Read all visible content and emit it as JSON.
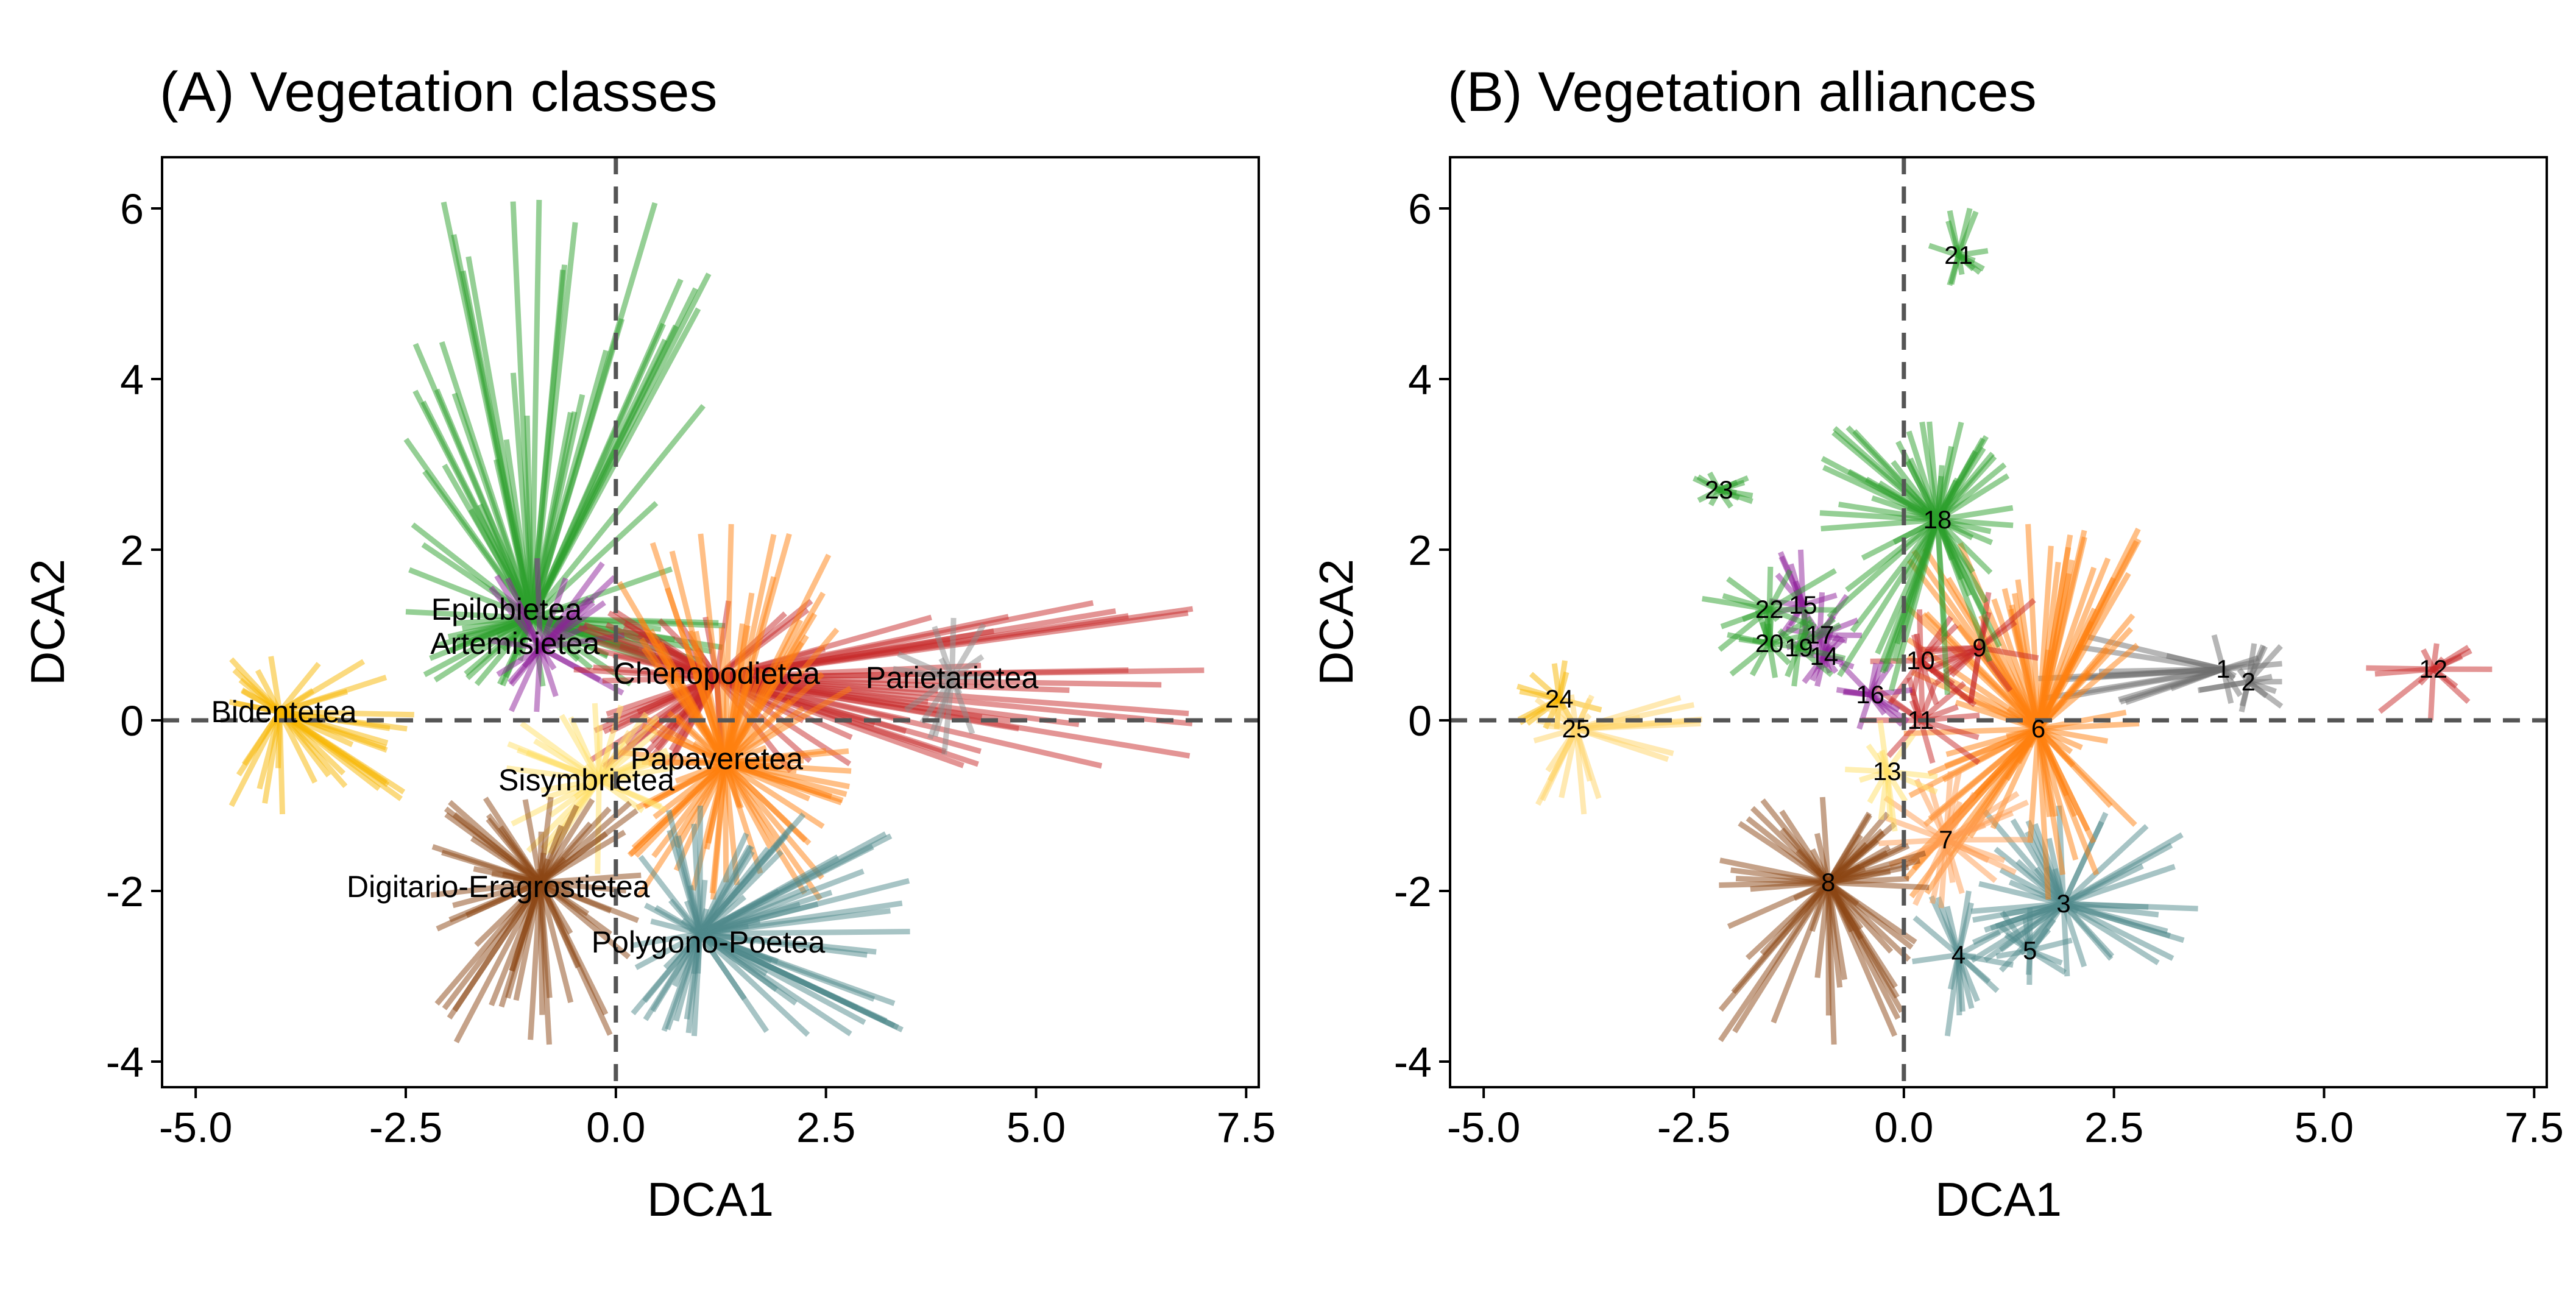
{
  "chart_data": [
    {
      "type": "scatter",
      "subtype": "spider-ordination",
      "title": "(A) Vegetation classes",
      "xlabel": "DCA1",
      "ylabel": "DCA2",
      "xlim": [
        -5.4,
        7.65
      ],
      "ylim": [
        -4.3,
        6.6
      ],
      "xticks": [
        "-5.0",
        "-2.5",
        "0.0",
        "2.5",
        "5.0",
        "7.5"
      ],
      "xtick_values": [
        -5,
        -2.5,
        0,
        2.5,
        5,
        7.5
      ],
      "yticks": [
        "-4",
        "-2",
        "0",
        "2",
        "4",
        "6"
      ],
      "ytick_values": [
        -4,
        -2,
        0,
        2,
        4,
        6
      ],
      "reference_lines": {
        "x": 0,
        "y": 0,
        "style": "dashed"
      },
      "grid": false,
      "groups": [
        {
          "name": "Epilobietea",
          "centroid": [
            -1.0,
            1.2
          ],
          "color": "#2ca02c",
          "label_text": "Epilobietea",
          "label_pos": [
            -1.3,
            1.3
          ],
          "spread": {
            "x": [
              -2.5,
              1.3
            ],
            "y": [
              0.4,
              6.1
            ]
          }
        },
        {
          "name": "Artemisietea",
          "centroid": [
            -0.9,
            0.85
          ],
          "color": "#8e1f9a",
          "label_text": "Artemisietea",
          "label_pos": [
            -1.2,
            0.9
          ],
          "spread": {
            "x": [
              -1.5,
              0.1
            ],
            "y": [
              0.1,
              1.9
            ]
          }
        },
        {
          "name": "Chenopodietea",
          "centroid": [
            1.2,
            0.5
          ],
          "color": "#c82a2a",
          "label_text": "Chenopodietea",
          "label_pos": [
            1.2,
            0.55
          ],
          "spread": {
            "x": [
              -0.5,
              7.0
            ],
            "y": [
              -0.6,
              1.4
            ]
          }
        },
        {
          "name": "Parietarietea",
          "centroid": [
            4.0,
            0.5
          ],
          "color": "#8c8c8c",
          "label_text": "Parietarietea",
          "label_pos": [
            4.0,
            0.5
          ],
          "spread": {
            "x": [
              3.3,
              4.5
            ],
            "y": [
              -0.4,
              1.2
            ]
          }
        },
        {
          "name": "Bidentetea",
          "centroid": [
            -4.0,
            0.1
          ],
          "color": "#f7b500",
          "label_text": "Bidentetea",
          "label_pos": [
            -3.95,
            0.1
          ],
          "spread": {
            "x": [
              -4.6,
              -2.4
            ],
            "y": [
              -1.1,
              0.75
            ]
          }
        },
        {
          "name": "Papaveretea",
          "centroid": [
            1.3,
            -0.5
          ],
          "color": "#ff7f0e",
          "label_text": "Papaveretea",
          "label_pos": [
            1.2,
            -0.45
          ],
          "spread": {
            "x": [
              0.0,
              2.8
            ],
            "y": [
              -2.1,
              2.3
            ]
          }
        },
        {
          "name": "Sisymbrietea",
          "centroid": [
            -0.2,
            -0.7
          ],
          "color": "#ffe066",
          "label_text": "Sisymbrietea",
          "label_pos": [
            -0.35,
            -0.7
          ],
          "spread": {
            "x": [
              -1.3,
              0.7
            ],
            "y": [
              -1.8,
              0.2
            ]
          }
        },
        {
          "name": "Digitario-Eragrostietea",
          "centroid": [
            -0.9,
            -1.9
          ],
          "color": "#8b4513",
          "label_text": "Digitario-Eragrostietea",
          "label_pos": [
            -1.4,
            -1.95
          ],
          "spread": {
            "x": [
              -2.2,
              0.3
            ],
            "y": [
              -3.8,
              -0.9
            ]
          }
        },
        {
          "name": "Polygono-Poetea",
          "centroid": [
            1.0,
            -2.5
          ],
          "color": "#4f8a8b",
          "label_text": "Polygono-Poetea",
          "label_pos": [
            1.1,
            -2.6
          ],
          "spread": {
            "x": [
              0.2,
              3.5
            ],
            "y": [
              -3.7,
              -1.0
            ]
          }
        }
      ]
    },
    {
      "type": "scatter",
      "subtype": "spider-ordination",
      "title": "(B) Vegetation alliances",
      "xlabel": "DCA1",
      "ylabel": "DCA2",
      "xlim": [
        -5.4,
        7.65
      ],
      "ylim": [
        -4.3,
        6.6
      ],
      "xticks": [
        "-5.0",
        "-2.5",
        "0.0",
        "2.5",
        "5.0",
        "7.5"
      ],
      "xtick_values": [
        -5,
        -2.5,
        0,
        2.5,
        5,
        7.5
      ],
      "yticks": [
        "-4",
        "-2",
        "0",
        "2",
        "4",
        "6"
      ],
      "ytick_values": [
        -4,
        -2,
        0,
        2,
        4,
        6
      ],
      "reference_lines": {
        "x": 0,
        "y": 0,
        "style": "dashed"
      },
      "grid": false,
      "groups": [
        {
          "label": "1",
          "centroid": [
            3.8,
            0.6
          ],
          "color": "#6d6d6d",
          "spread": {
            "x": [
              1.6,
              4.5
            ],
            "y": [
              0.2,
              1.0
            ]
          }
        },
        {
          "label": "2",
          "centroid": [
            4.1,
            0.45
          ],
          "color": "#6d6d6d",
          "spread": {
            "x": [
              3.5,
              4.5
            ],
            "y": [
              0.1,
              0.9
            ]
          }
        },
        {
          "label": "3",
          "centroid": [
            1.9,
            -2.15
          ],
          "color": "#4f8a8b",
          "spread": {
            "x": [
              0.8,
              3.5
            ],
            "y": [
              -3.0,
              -1.0
            ]
          }
        },
        {
          "label": "4",
          "centroid": [
            0.65,
            -2.75
          ],
          "color": "#4f8a8b",
          "spread": {
            "x": [
              0.1,
              1.3
            ],
            "y": [
              -3.7,
              -2.0
            ]
          }
        },
        {
          "label": "5",
          "centroid": [
            1.5,
            -2.7
          ],
          "color": "#4f8a8b",
          "spread": {
            "x": [
              1.1,
              2.0
            ],
            "y": [
              -3.1,
              -2.2
            ]
          }
        },
        {
          "label": "6",
          "centroid": [
            1.6,
            -0.1
          ],
          "color": "#ff7f0e",
          "spread": {
            "x": [
              0.0,
              2.8
            ],
            "y": [
              -2.1,
              2.3
            ]
          }
        },
        {
          "label": "7",
          "centroid": [
            0.5,
            -1.4
          ],
          "color": "#ff9c50",
          "spread": {
            "x": [
              -0.3,
              1.5
            ],
            "y": [
              -2.2,
              -0.6
            ]
          }
        },
        {
          "label": "8",
          "centroid": [
            -0.9,
            -1.9
          ],
          "color": "#8b4513",
          "spread": {
            "x": [
              -2.2,
              0.3
            ],
            "y": [
              -3.8,
              -0.9
            ]
          }
        },
        {
          "label": "9",
          "centroid": [
            0.9,
            0.85
          ],
          "color": "#c82a2a",
          "spread": {
            "x": [
              0.2,
              1.6
            ],
            "y": [
              0.2,
              1.5
            ]
          }
        },
        {
          "label": "10",
          "centroid": [
            0.2,
            0.7
          ],
          "color": "#c82a2a",
          "spread": {
            "x": [
              -0.4,
              0.9
            ],
            "y": [
              0.1,
              1.3
            ]
          }
        },
        {
          "label": "11",
          "centroid": [
            0.2,
            0.0
          ],
          "color": "#c82a2a",
          "spread": {
            "x": [
              -0.5,
              0.9
            ],
            "y": [
              -0.5,
              0.5
            ]
          }
        },
        {
          "label": "12",
          "centroid": [
            6.3,
            0.6
          ],
          "color": "#c82a2a",
          "spread": {
            "x": [
              5.5,
              7.0
            ],
            "y": [
              0.0,
              0.9
            ]
          }
        },
        {
          "label": "13",
          "centroid": [
            -0.2,
            -0.6
          ],
          "color": "#ffe066",
          "spread": {
            "x": [
              -0.7,
              0.4
            ],
            "y": [
              -1.3,
              0.0
            ]
          }
        },
        {
          "label": "14",
          "centroid": [
            -0.95,
            0.75
          ],
          "color": "#8e1f9a",
          "spread": {
            "x": [
              -1.3,
              -0.6
            ],
            "y": [
              0.4,
              1.1
            ]
          }
        },
        {
          "label": "15",
          "centroid": [
            -1.2,
            1.35
          ],
          "color": "#8e1f9a",
          "spread": {
            "x": [
              -1.6,
              -0.8
            ],
            "y": [
              0.9,
              2.0
            ]
          }
        },
        {
          "label": "16",
          "centroid": [
            -0.4,
            0.3
          ],
          "color": "#8e1f9a",
          "spread": {
            "x": [
              -0.8,
              0.1
            ],
            "y": [
              -0.1,
              0.7
            ]
          }
        },
        {
          "label": "17",
          "centroid": [
            -1.0,
            1.0
          ],
          "color": "#8e1f9a",
          "spread": {
            "x": [
              -1.4,
              -0.5
            ],
            "y": [
              0.6,
              1.5
            ]
          }
        },
        {
          "label": "18",
          "centroid": [
            0.4,
            2.35
          ],
          "color": "#2ca02c",
          "spread": {
            "x": [
              -1.0,
              1.3
            ],
            "y": [
              0.3,
              3.5
            ]
          }
        },
        {
          "label": "19",
          "centroid": [
            -1.25,
            0.85
          ],
          "color": "#2ca02c",
          "spread": {
            "x": [
              -1.8,
              -0.7
            ],
            "y": [
              0.4,
              1.3
            ]
          }
        },
        {
          "label": "20",
          "centroid": [
            -1.6,
            0.9
          ],
          "color": "#2ca02c",
          "spread": {
            "x": [
              -2.1,
              -1.1
            ],
            "y": [
              0.5,
              1.3
            ]
          }
        },
        {
          "label": "21",
          "centroid": [
            0.65,
            5.45
          ],
          "color": "#2ca02c",
          "spread": {
            "x": [
              0.3,
              1.0
            ],
            "y": [
              5.1,
              6.0
            ]
          }
        },
        {
          "label": "22",
          "centroid": [
            -1.6,
            1.3
          ],
          "color": "#2ca02c",
          "spread": {
            "x": [
              -2.4,
              -0.8
            ],
            "y": [
              0.8,
              1.8
            ]
          }
        },
        {
          "label": "23",
          "centroid": [
            -2.2,
            2.7
          ],
          "color": "#2ca02c",
          "spread": {
            "x": [
              -2.5,
              -1.8
            ],
            "y": [
              2.5,
              2.9
            ]
          }
        },
        {
          "label": "24",
          "centroid": [
            -4.1,
            0.25
          ],
          "color": "#f7b500",
          "spread": {
            "x": [
              -4.6,
              -3.6
            ],
            "y": [
              -0.1,
              0.7
            ]
          }
        },
        {
          "label": "25",
          "centroid": [
            -3.9,
            -0.1
          ],
          "color": "#ffd466",
          "spread": {
            "x": [
              -4.4,
              -2.4
            ],
            "y": [
              -1.1,
              0.3
            ]
          }
        }
      ]
    }
  ]
}
